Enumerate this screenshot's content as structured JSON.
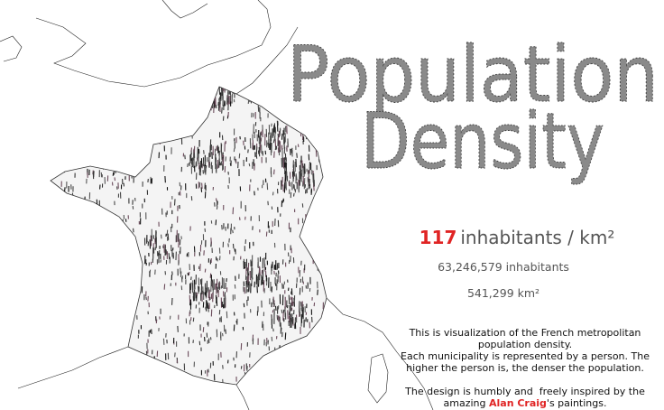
{
  "title": {
    "line1": "Population",
    "line2": "Density"
  },
  "stats": {
    "density_value": 117,
    "density_unit": "inhabitants / km²",
    "population": "63,246,579 inhabitants",
    "area": "541,299 km²"
  },
  "description": {
    "paragraph1": [
      "This is visualization of the French metropolitan",
      "population density.",
      "Each municipality is represented by a person. The",
      "higher the person is, the denser the population."
    ],
    "paragraph2": {
      "line1": "The design is humbly and  freely inspired by the",
      "line2_before": "amazing ",
      "artist": "Alan Craig",
      "line2_after": "'s paintings."
    }
  }
}
